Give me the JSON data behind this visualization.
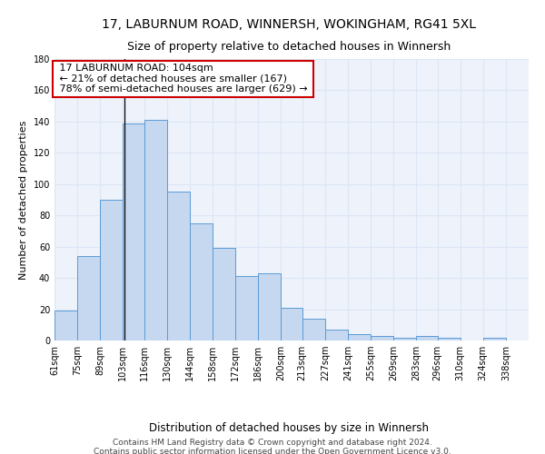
{
  "title1": "17, LABURNUM ROAD, WINNERSH, WOKINGHAM, RG41 5XL",
  "title2": "Size of property relative to detached houses in Winnersh",
  "xlabel": "Distribution of detached houses by size in Winnersh",
  "ylabel": "Number of detached properties",
  "footer1": "Contains HM Land Registry data © Crown copyright and database right 2024.",
  "footer2": "Contains public sector information licensed under the Open Government Licence v3.0.",
  "annotation_line1": "17 LABURNUM ROAD: 104sqm",
  "annotation_line2": "← 21% of detached houses are smaller (167)",
  "annotation_line3": "78% of semi-detached houses are larger (629) →",
  "bar_left_edges": [
    61,
    75,
    89,
    103,
    116,
    130,
    144,
    158,
    172,
    186,
    200,
    213,
    227,
    241,
    255,
    269,
    283,
    296,
    310,
    324
  ],
  "bar_widths": [
    14,
    14,
    14,
    13,
    14,
    14,
    14,
    14,
    14,
    14,
    13,
    14,
    14,
    14,
    14,
    14,
    13,
    14,
    14,
    14
  ],
  "bar_heights": [
    19,
    54,
    90,
    139,
    141,
    95,
    75,
    59,
    41,
    43,
    21,
    14,
    7,
    4,
    3,
    2,
    3,
    2,
    0,
    2
  ],
  "bar_color": "#c5d8f0",
  "bar_edge_color": "#5b9bd5",
  "vline_x": 104,
  "vline_color": "#000000",
  "ylim": [
    0,
    180
  ],
  "yticks": [
    0,
    20,
    40,
    60,
    80,
    100,
    120,
    140,
    160,
    180
  ],
  "xtick_labels": [
    "61sqm",
    "75sqm",
    "89sqm",
    "103sqm",
    "116sqm",
    "130sqm",
    "144sqm",
    "158sqm",
    "172sqm",
    "186sqm",
    "200sqm",
    "213sqm",
    "227sqm",
    "241sqm",
    "255sqm",
    "269sqm",
    "283sqm",
    "296sqm",
    "310sqm",
    "324sqm",
    "338sqm"
  ],
  "xtick_positions": [
    61,
    75,
    89,
    103,
    116,
    130,
    144,
    158,
    172,
    186,
    200,
    213,
    227,
    241,
    255,
    269,
    283,
    296,
    310,
    324,
    338
  ],
  "grid_color": "#dce6f5",
  "bg_color": "#edf2fb",
  "annotation_box_color": "#ffffff",
  "annotation_box_edge": "#cc0000",
  "title1_fontsize": 10,
  "title2_fontsize": 9,
  "xlabel_fontsize": 8.5,
  "ylabel_fontsize": 8,
  "tick_fontsize": 7,
  "footer_fontsize": 6.5,
  "ann_fontsize": 8
}
